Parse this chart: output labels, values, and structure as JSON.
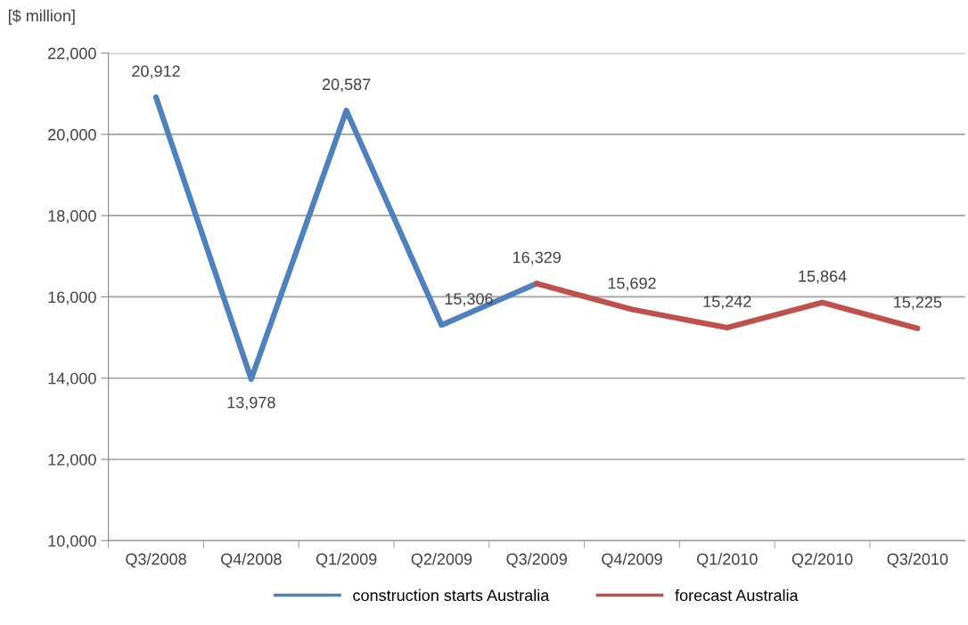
{
  "chart_data": {
    "type": "line",
    "ylabel": "[$ million]",
    "categories": [
      "Q3/2008",
      "Q4/2008",
      "Q1/2009",
      "Q2/2009",
      "Q3/2009",
      "Q4/2009",
      "Q1/2010",
      "Q2/2010",
      "Q3/2010"
    ],
    "series": [
      {
        "name": "construction starts Australia",
        "color": "#4f81bd",
        "values": [
          20912,
          13978,
          20587,
          15306,
          16329,
          null,
          null,
          null,
          null
        ],
        "value_labels": [
          "20,912",
          "13,978",
          "20,587",
          "15,306",
          "16,329",
          null,
          null,
          null,
          null
        ]
      },
      {
        "name": "forecast Australia",
        "color": "#c0504d",
        "values": [
          null,
          null,
          null,
          null,
          16329,
          15692,
          15242,
          15864,
          15225
        ],
        "value_labels": [
          null,
          null,
          null,
          null,
          null,
          "15,692",
          "15,242",
          "15,864",
          "15,225"
        ]
      }
    ],
    "ylim": [
      10000,
      22000
    ],
    "yticks": [
      {
        "value": 10000,
        "label": "10,000"
      },
      {
        "value": 12000,
        "label": "12,000"
      },
      {
        "value": 14000,
        "label": "14,000"
      },
      {
        "value": 16000,
        "label": "16,000"
      },
      {
        "value": 18000,
        "label": "18,000"
      },
      {
        "value": 20000,
        "label": "20,000"
      },
      {
        "value": 22000,
        "label": "22,000"
      }
    ],
    "grid": "y",
    "legend": "bottom",
    "marker": "none",
    "line_style": "solid"
  }
}
